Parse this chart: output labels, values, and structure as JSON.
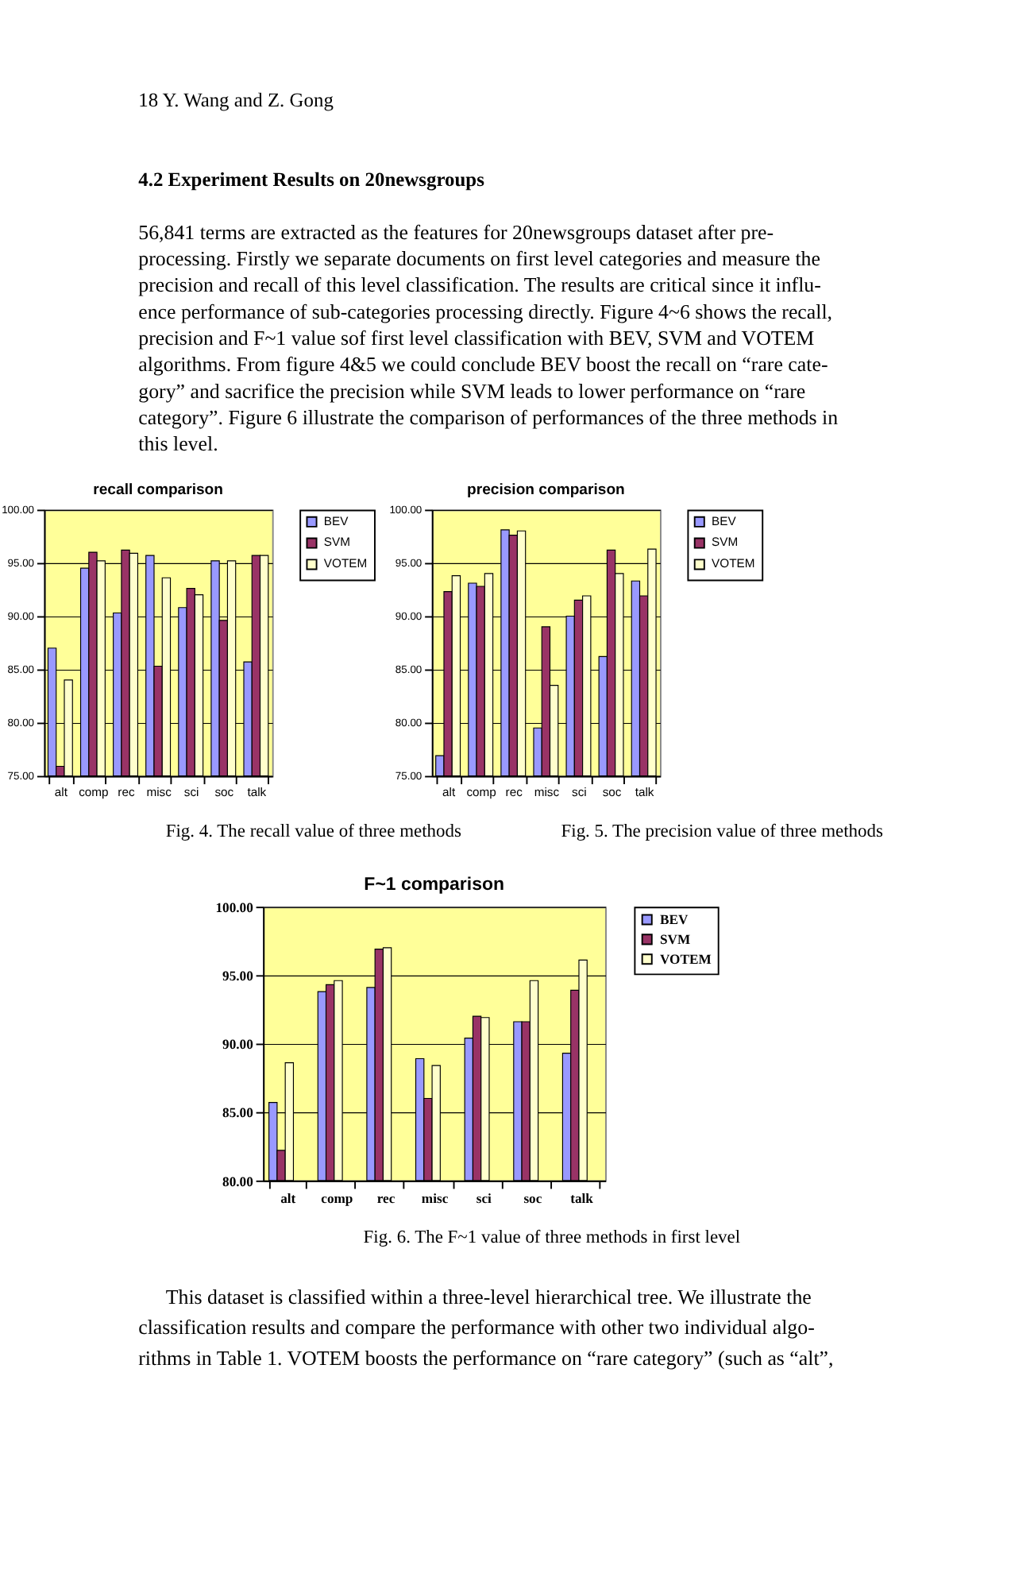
{
  "chart_data": [
    {
      "type": "bar",
      "title": "recall comparison",
      "categories": [
        "alt",
        "comp",
        "rec",
        "misc",
        "sci",
        "soc",
        "talk"
      ],
      "series": [
        {
          "name": "BEV",
          "color": "#9999ff",
          "values": [
            87.0,
            94.5,
            90.3,
            95.7,
            90.8,
            95.2,
            85.7
          ]
        },
        {
          "name": "SVM",
          "color": "#993366",
          "values": [
            75.9,
            96.0,
            96.2,
            85.3,
            92.6,
            89.6,
            95.7
          ]
        },
        {
          "name": "VOTEM",
          "color": "#ffffcc",
          "values": [
            84.0,
            95.2,
            95.9,
            93.6,
            92.0,
            95.2,
            95.7
          ]
        }
      ],
      "ylim": [
        75,
        100
      ],
      "yticks": [
        {
          "value": 75,
          "label": "75.00"
        },
        {
          "value": 80,
          "label": "80.00"
        },
        {
          "value": 85,
          "label": "85.00"
        },
        {
          "value": 90,
          "label": "90.00"
        },
        {
          "value": 95,
          "label": "95.00"
        },
        {
          "value": 100,
          "label": "100.00"
        }
      ],
      "grid": "y",
      "legend": "right",
      "annotations": [
        "18      Y. Wang and Z. Gong",
        "4.2   Experiment Results on 20newsgroups",
        "56,841 terms are extracted as the features for 20newsgroups dataset after pre-",
        "processing. Firstly we separate documents on first level categories and measure the",
        "precision and recall of this level classification. The results are critical since it influ-",
        "ence performance of sub-categories processing directly. Figure 4~6 shows the recall,",
        "precision and F~1 value sof first level classification with BEV, SVM and VOTEM",
        "algorithms. From figure 4&5 we could conclude BEV boost the recall on “rare cate-",
        "gory” and sacrifice the precision while SVM leads to lower performance on “rare",
        "category”. Figure 6 illustrate the comparison of performances of the three methods in",
        "this level.",
        "Fig. 4. The recall value of three methods"
      ]
    },
    {
      "type": "bar",
      "title": "precision comparison",
      "categories": [
        "alt",
        "comp",
        "rec",
        "misc",
        "sci",
        "soc",
        "talk"
      ],
      "series": [
        {
          "name": "BEV",
          "color": "#9999ff",
          "values": [
            76.9,
            93.1,
            98.1,
            79.5,
            90.0,
            86.2,
            93.3
          ]
        },
        {
          "name": "SVM",
          "color": "#993366",
          "values": [
            92.3,
            92.8,
            97.6,
            89.0,
            91.5,
            96.2,
            91.9
          ]
        },
        {
          "name": "VOTEM",
          "color": "#ffffcc",
          "values": [
            93.8,
            94.0,
            98.0,
            83.5,
            91.9,
            94.0,
            96.3
          ]
        }
      ],
      "ylim": [
        75,
        100
      ],
      "yticks": [
        {
          "value": 75,
          "label": "75.00"
        },
        {
          "value": 80,
          "label": "80.00"
        },
        {
          "value": 85,
          "label": "85.00"
        },
        {
          "value": 90,
          "label": "90.00"
        },
        {
          "value": 95,
          "label": "95.00"
        },
        {
          "value": 100,
          "label": "100.00"
        }
      ],
      "grid": "y",
      "legend": "right",
      "annotations": [
        "Fig. 5. The precision value of three methods"
      ]
    },
    {
      "type": "bar",
      "title": "F~1 comparison",
      "categories": [
        "alt",
        "comp",
        "rec",
        "misc",
        "sci",
        "soc",
        "talk"
      ],
      "series": [
        {
          "name": "BEV",
          "color": "#9999ff",
          "values": [
            85.7,
            93.8,
            94.1,
            88.9,
            90.4,
            91.6,
            89.3
          ]
        },
        {
          "name": "SVM",
          "color": "#993366",
          "values": [
            82.2,
            94.3,
            96.9,
            86.0,
            92.0,
            91.6,
            93.9
          ]
        },
        {
          "name": "VOTEM",
          "color": "#ffffcc",
          "values": [
            88.6,
            94.6,
            97.0,
            88.4,
            91.9,
            94.6,
            96.1
          ]
        }
      ],
      "ylim": [
        80,
        100
      ],
      "yticks": [
        {
          "value": 80,
          "label": "80.00"
        },
        {
          "value": 85,
          "label": "85.00"
        },
        {
          "value": 90,
          "label": "90.00"
        },
        {
          "value": 95,
          "label": "95.00"
        },
        {
          "value": 100,
          "label": "100.00"
        }
      ],
      "grid": "y",
      "legend": "right",
      "annotations": [
        "Fig. 6. The F~1 value of three methods in first level",
        "This dataset is classified within a three-level hierarchical tree. We illustrate the",
        "classification results and compare the performance with other two individual algo-",
        "rithms in Table 1. VOTEM boosts the performance on “rare category” (such as “alt”,"
      ]
    }
  ]
}
